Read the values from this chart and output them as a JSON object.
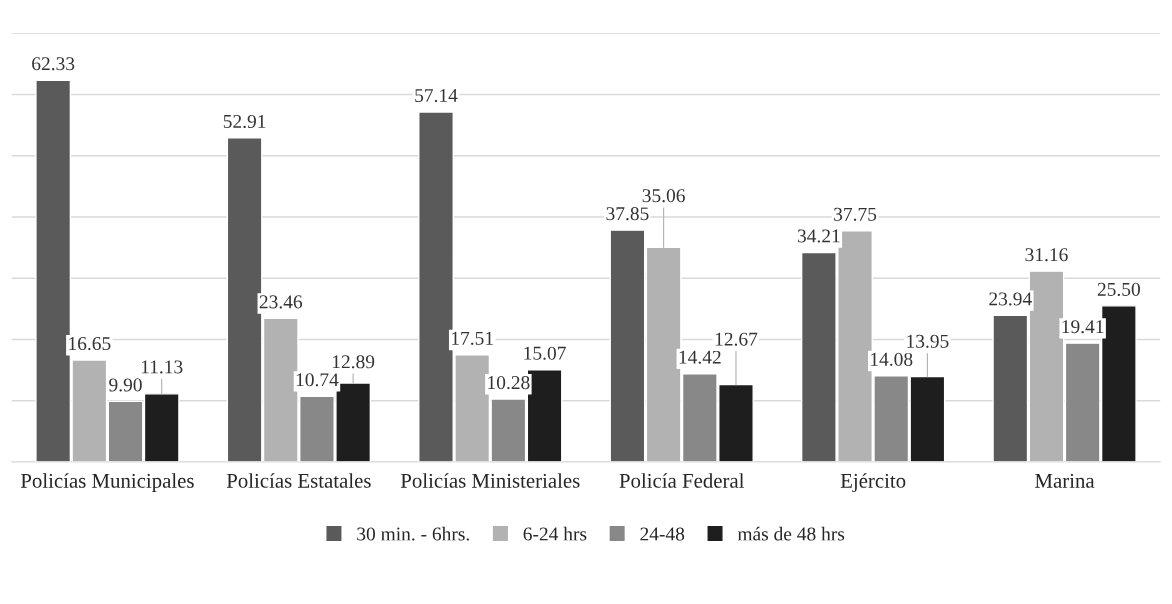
{
  "chart_data": {
    "type": "bar",
    "categories": [
      "Policías Municipales",
      "Policías Estatales",
      "Policías Ministeriales",
      "Policía Federal",
      "Ejército",
      "Marina"
    ],
    "series": [
      {
        "name": "30 min. - 6hrs.",
        "color": "#5a5a5a",
        "values": [
          62.33,
          52.91,
          57.14,
          37.85,
          34.21,
          23.94
        ],
        "value_labels": [
          "62.33",
          "52.91",
          "57.14",
          "37.85",
          "34.21",
          "23.94"
        ]
      },
      {
        "name": "6-24 hrs",
        "color": "#b2b2b2",
        "values": [
          16.65,
          23.46,
          17.51,
          35.06,
          37.75,
          31.16
        ],
        "value_labels": [
          "16.65",
          "23.46",
          "17.51",
          "35.06",
          "37.75",
          "31.16"
        ]
      },
      {
        "name": "24-48",
        "color": "#888888",
        "values": [
          9.9,
          10.74,
          10.28,
          14.42,
          14.08,
          19.41
        ],
        "value_labels": [
          "9.90",
          "10.74",
          "10.28",
          "14.42",
          "14.08",
          "19.41"
        ]
      },
      {
        "name": "más de 48 hrs",
        "color": "#1e1e1e",
        "values": [
          11.13,
          12.89,
          15.07,
          12.67,
          13.95,
          25.5
        ],
        "value_labels": [
          "11.13",
          "12.89",
          "15.07",
          "12.67",
          "13.95",
          "25.50"
        ]
      }
    ],
    "ylim": [
      0,
      70
    ],
    "yticks": [
      {
        "value": 0,
        "label": null
      },
      {
        "value": 10,
        "label": null
      },
      {
        "value": 20,
        "label": null
      },
      {
        "value": 30,
        "label": null
      },
      {
        "value": 40,
        "label": null
      },
      {
        "value": 50,
        "label": null
      },
      {
        "value": 60,
        "label": null
      },
      {
        "value": 70,
        "label": null
      }
    ],
    "tick_labels": "x",
    "grid": "y",
    "legend": "bottom"
  }
}
